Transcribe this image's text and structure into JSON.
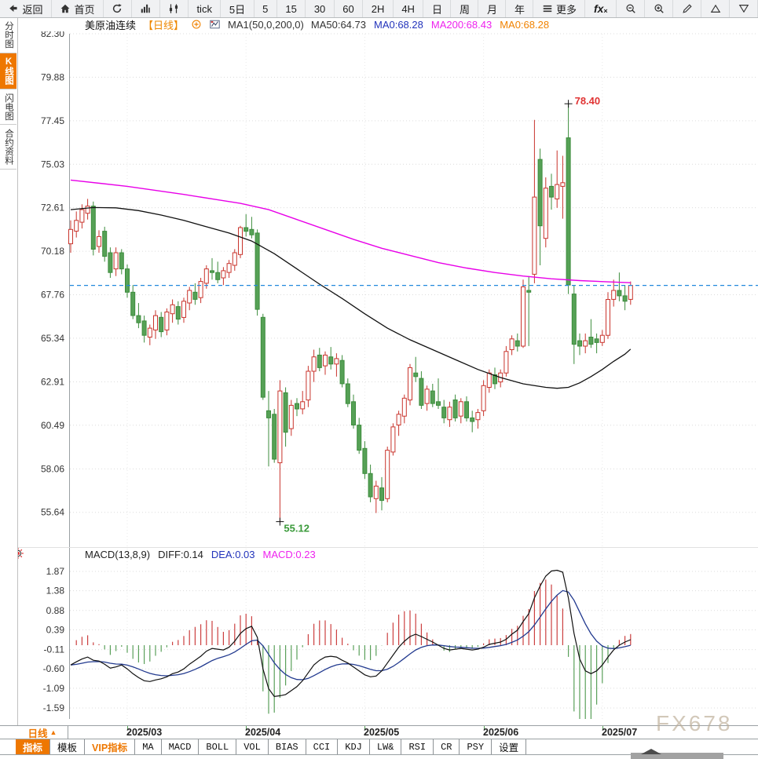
{
  "toolbar": {
    "buttons": [
      {
        "id": "back",
        "label": "返回",
        "icon": "back-arrow"
      },
      {
        "id": "home",
        "label": "首页",
        "icon": "home"
      },
      {
        "id": "refresh",
        "icon": "refresh"
      },
      {
        "id": "chart-type-bar",
        "icon": "bar-chart"
      },
      {
        "id": "chart-settings",
        "icon": "kline-sliders"
      },
      {
        "id": "period-tick",
        "label": "tick"
      },
      {
        "id": "period-5d",
        "label": "5日"
      },
      {
        "id": "period-5m",
        "label": "5"
      },
      {
        "id": "period-15m",
        "label": "15"
      },
      {
        "id": "period-30m",
        "label": "30"
      },
      {
        "id": "period-60m",
        "label": "60"
      },
      {
        "id": "period-2h",
        "label": "2H"
      },
      {
        "id": "period-4h",
        "label": "4H"
      },
      {
        "id": "period-day",
        "label": "日"
      },
      {
        "id": "period-week",
        "label": "周"
      },
      {
        "id": "period-month",
        "label": "月"
      },
      {
        "id": "period-year",
        "label": "年"
      },
      {
        "id": "more",
        "label": "更多",
        "icon": "menu"
      },
      {
        "id": "fx",
        "icon": "fx"
      },
      {
        "id": "zoom-out",
        "icon": "zoom-out"
      },
      {
        "id": "zoom-in",
        "icon": "zoom-in"
      },
      {
        "id": "draw",
        "icon": "pencil"
      },
      {
        "id": "overlay-up",
        "icon": "triangle-up"
      },
      {
        "id": "overlay-down",
        "icon": "triangle-down"
      }
    ]
  },
  "sidebar": {
    "tabs": [
      {
        "id": "time-chart",
        "label": "分时图",
        "active": false
      },
      {
        "id": "kline-chart",
        "label": "K线图",
        "active": true
      },
      {
        "id": "lightning-chart",
        "label": "闪电图",
        "active": false
      },
      {
        "id": "contract-info",
        "label": "合约资料",
        "active": false
      }
    ]
  },
  "chart_header": {
    "symbol": "美原油连续",
    "period_tag": "【日线】",
    "ma_formula": "MA1(50,0,200,0)",
    "ma_items": [
      {
        "label": "MA50:64.73",
        "color": "#333333"
      },
      {
        "label": "MA0:68.28",
        "color": "#2233bb"
      },
      {
        "label": "MA200:68.43",
        "color": "#ee22ee"
      },
      {
        "label": "MA0:68.28",
        "color": "#f08200"
      }
    ]
  },
  "macd_header": {
    "formula": "MACD(13,8,9)",
    "items": [
      {
        "label": "DIFF:0.14",
        "color": "#222222"
      },
      {
        "label": "DEA:0.03",
        "color": "#2233bb"
      },
      {
        "label": "MACD:0.23",
        "color": "#ee22ee"
      }
    ]
  },
  "chart_data": {
    "type": "candlestick+macd",
    "symbol": "美原油连续 (US Crude Oil Continuous)",
    "period": "日线 (Daily)",
    "price_axis_labels": [
      "82.30",
      "79.88",
      "77.45",
      "75.03",
      "72.61",
      "70.18",
      "67.76",
      "65.34",
      "62.91",
      "60.49",
      "58.06",
      "55.64"
    ],
    "last_close_line": 68.28,
    "annotations": {
      "high": {
        "index": 88,
        "price": 78.4,
        "label": "78.40"
      },
      "low": {
        "index": 37,
        "price": 55.12,
        "label": "55.12"
      }
    },
    "x_axis": {
      "labels": [
        "2025/03",
        "2025/04",
        "2025/05",
        "2025/06",
        "2025/07"
      ],
      "tick_indices": [
        10,
        31,
        52,
        73,
        94
      ]
    },
    "candles": [
      [
        70.6,
        71.9,
        70.1,
        71.4
      ],
      [
        71.3,
        72.4,
        70.95,
        71.9
      ],
      [
        71.8,
        72.8,
        71.45,
        72.5
      ],
      [
        72.3,
        73.1,
        71.95,
        72.7
      ],
      [
        72.7,
        72.95,
        69.95,
        70.3
      ],
      [
        70.45,
        71.35,
        70.1,
        71.0
      ],
      [
        71.3,
        71.55,
        69.6,
        69.9
      ],
      [
        70.1,
        70.4,
        68.7,
        69.0
      ],
      [
        69.2,
        70.4,
        68.8,
        70.1
      ],
      [
        70.1,
        70.3,
        68.9,
        69.2
      ],
      [
        69.2,
        69.45,
        67.6,
        67.9
      ],
      [
        67.9,
        68.3,
        66.4,
        66.6
      ],
      [
        66.6,
        67.3,
        65.9,
        66.2
      ],
      [
        66.3,
        66.6,
        65.1,
        65.5
      ],
      [
        65.4,
        66.1,
        64.95,
        65.9
      ],
      [
        65.8,
        66.9,
        65.3,
        66.6
      ],
      [
        66.5,
        66.8,
        65.4,
        65.7
      ],
      [
        65.8,
        67.0,
        65.5,
        66.8
      ],
      [
        66.7,
        67.5,
        66.2,
        67.2
      ],
      [
        67.1,
        67.4,
        66.1,
        66.4
      ],
      [
        66.5,
        67.6,
        66.2,
        67.4
      ],
      [
        67.3,
        68.2,
        66.9,
        68.0
      ],
      [
        67.9,
        68.4,
        67.2,
        67.5
      ],
      [
        67.6,
        68.7,
        67.3,
        68.5
      ],
      [
        68.4,
        69.4,
        68.1,
        69.2
      ],
      [
        69.1,
        69.8,
        68.6,
        69.0
      ],
      [
        69.0,
        69.6,
        68.4,
        68.6
      ],
      [
        68.7,
        69.3,
        68.3,
        69.1
      ],
      [
        69.0,
        69.7,
        68.7,
        69.5
      ],
      [
        69.4,
        70.3,
        69.1,
        70.1
      ],
      [
        70.0,
        71.6,
        69.8,
        71.5
      ],
      [
        71.5,
        72.25,
        71.0,
        71.3
      ],
      [
        71.4,
        72.1,
        70.9,
        71.1
      ],
      [
        71.2,
        71.4,
        66.6,
        66.95
      ],
      [
        66.5,
        66.7,
        61.9,
        62.05
      ],
      [
        61.3,
        62.4,
        58.2,
        60.9
      ],
      [
        61.1,
        61.4,
        58.4,
        58.6
      ],
      [
        58.4,
        63.0,
        55.12,
        62.4
      ],
      [
        62.3,
        62.6,
        59.3,
        60.1
      ],
      [
        60.3,
        61.9,
        59.9,
        61.6
      ],
      [
        61.7,
        62.0,
        61.0,
        61.4
      ],
      [
        61.4,
        62.4,
        61.1,
        61.8
      ],
      [
        61.9,
        63.8,
        61.5,
        63.5
      ],
      [
        63.5,
        64.7,
        62.9,
        64.3
      ],
      [
        64.4,
        64.8,
        63.5,
        63.7
      ],
      [
        63.8,
        64.6,
        63.3,
        64.4
      ],
      [
        64.3,
        64.85,
        63.6,
        63.9
      ],
      [
        63.9,
        64.5,
        63.2,
        64.2
      ],
      [
        64.1,
        64.4,
        62.6,
        62.8
      ],
      [
        62.8,
        63.1,
        61.5,
        61.7
      ],
      [
        61.8,
        62.2,
        60.3,
        60.5
      ],
      [
        60.5,
        60.9,
        58.9,
        59.1
      ],
      [
        59.2,
        59.6,
        57.5,
        57.8
      ],
      [
        57.8,
        58.3,
        56.2,
        56.5
      ],
      [
        56.4,
        57.4,
        55.6,
        57.1
      ],
      [
        57.0,
        57.6,
        55.75,
        56.3
      ],
      [
        56.4,
        59.3,
        56.2,
        59.1
      ],
      [
        59.0,
        60.6,
        58.8,
        60.4
      ],
      [
        60.5,
        61.3,
        59.9,
        61.1
      ],
      [
        61.0,
        62.2,
        60.6,
        62.0
      ],
      [
        61.9,
        63.9,
        61.6,
        63.7
      ],
      [
        63.4,
        64.3,
        62.9,
        63.2
      ],
      [
        63.1,
        63.5,
        61.4,
        61.6
      ],
      [
        61.7,
        62.7,
        61.3,
        62.5
      ],
      [
        62.4,
        62.8,
        61.5,
        61.7
      ],
      [
        61.8,
        63.1,
        61.4,
        61.6
      ],
      [
        61.5,
        61.9,
        60.6,
        60.9
      ],
      [
        60.8,
        61.8,
        60.4,
        61.5
      ],
      [
        61.9,
        62.2,
        60.7,
        60.9
      ],
      [
        61.0,
        62.0,
        60.6,
        61.8
      ],
      [
        61.8,
        62.1,
        60.7,
        60.9
      ],
      [
        60.9,
        61.3,
        60.1,
        60.7
      ],
      [
        60.8,
        61.4,
        60.3,
        61.2
      ],
      [
        61.3,
        63.0,
        61.0,
        62.7
      ],
      [
        62.6,
        63.6,
        62.3,
        63.4
      ],
      [
        63.3,
        63.7,
        62.5,
        62.8
      ],
      [
        62.9,
        63.6,
        62.6,
        63.4
      ],
      [
        63.4,
        64.9,
        63.2,
        64.6
      ],
      [
        64.7,
        65.5,
        64.4,
        65.3
      ],
      [
        65.2,
        65.6,
        64.6,
        64.9
      ],
      [
        64.9,
        68.6,
        64.8,
        68.2
      ],
      [
        68.0,
        68.8,
        64.9,
        67.9
      ],
      [
        68.9,
        77.5,
        68.4,
        73.2
      ],
      [
        75.3,
        75.9,
        69.4,
        71.6
      ],
      [
        70.9,
        74.3,
        70.4,
        73.7
      ],
      [
        73.8,
        74.5,
        72.5,
        73.2
      ],
      [
        73.1,
        75.8,
        72.6,
        73.9
      ],
      [
        73.8,
        75.5,
        72.0,
        74.0
      ],
      [
        76.5,
        78.4,
        67.8,
        68.3
      ],
      [
        67.8,
        68.3,
        63.9,
        65.0
      ],
      [
        65.2,
        65.6,
        64.4,
        64.9
      ],
      [
        64.9,
        65.6,
        64.5,
        65.2
      ],
      [
        65.4,
        66.4,
        64.8,
        65.0
      ],
      [
        65.3,
        65.6,
        64.5,
        65.1
      ],
      [
        65.1,
        65.8,
        64.9,
        65.5
      ],
      [
        65.5,
        67.9,
        65.3,
        67.5
      ],
      [
        67.5,
        68.6,
        67.1,
        68.0
      ],
      [
        68.0,
        69.0,
        67.4,
        67.7
      ],
      [
        67.7,
        68.3,
        66.9,
        67.4
      ],
      [
        67.5,
        68.5,
        67.2,
        68.28
      ]
    ],
    "ma50_points": [
      [
        0,
        72.5
      ],
      [
        4,
        72.62
      ],
      [
        8,
        72.6
      ],
      [
        12,
        72.45
      ],
      [
        16,
        72.2
      ],
      [
        20,
        71.9
      ],
      [
        24,
        71.55
      ],
      [
        28,
        71.2
      ],
      [
        32,
        70.75
      ],
      [
        36,
        70.05
      ],
      [
        40,
        69.2
      ],
      [
        44,
        68.35
      ],
      [
        48,
        67.55
      ],
      [
        52,
        66.7
      ],
      [
        56,
        65.9
      ],
      [
        60,
        65.25
      ],
      [
        64,
        64.7
      ],
      [
        68,
        64.15
      ],
      [
        72,
        63.6
      ],
      [
        76,
        63.15
      ],
      [
        80,
        62.8
      ],
      [
        84,
        62.6
      ],
      [
        86,
        62.55
      ],
      [
        88,
        62.6
      ],
      [
        90,
        62.85
      ],
      [
        92,
        63.2
      ],
      [
        94,
        63.6
      ],
      [
        96,
        64.05
      ],
      [
        98,
        64.45
      ],
      [
        99,
        64.73
      ]
    ],
    "ma200_points": [
      [
        0,
        74.15
      ],
      [
        10,
        73.8
      ],
      [
        20,
        73.35
      ],
      [
        30,
        72.85
      ],
      [
        35,
        72.5
      ],
      [
        40,
        71.95
      ],
      [
        45,
        71.4
      ],
      [
        50,
        70.85
      ],
      [
        55,
        70.35
      ],
      [
        60,
        69.95
      ],
      [
        65,
        69.55
      ],
      [
        70,
        69.25
      ],
      [
        75,
        69.0
      ],
      [
        80,
        68.8
      ],
      [
        85,
        68.65
      ],
      [
        90,
        68.55
      ],
      [
        95,
        68.48
      ],
      [
        99,
        68.43
      ]
    ],
    "macd": {
      "axis_labels": [
        "1.87",
        "1.38",
        "0.88",
        "0.39",
        "-0.11",
        "-0.60",
        "-1.09",
        "-1.59"
      ],
      "diff": [
        -0.5,
        -0.42,
        -0.35,
        -0.3,
        -0.38,
        -0.4,
        -0.48,
        -0.58,
        -0.55,
        -0.5,
        -0.6,
        -0.72,
        -0.82,
        -0.9,
        -0.92,
        -0.88,
        -0.85,
        -0.8,
        -0.72,
        -0.68,
        -0.6,
        -0.48,
        -0.38,
        -0.28,
        -0.15,
        -0.08,
        -0.1,
        -0.12,
        -0.05,
        0.1,
        0.3,
        0.42,
        0.48,
        0.2,
        -0.6,
        -1.1,
        -1.3,
        -1.28,
        -1.25,
        -1.15,
        -1.05,
        -0.9,
        -0.7,
        -0.5,
        -0.38,
        -0.3,
        -0.28,
        -0.3,
        -0.38,
        -0.45,
        -0.55,
        -0.65,
        -0.75,
        -0.8,
        -0.78,
        -0.65,
        -0.45,
        -0.25,
        -0.05,
        0.1,
        0.22,
        0.28,
        0.22,
        0.15,
        0.08,
        0.0,
        -0.08,
        -0.12,
        -0.1,
        -0.08,
        -0.1,
        -0.12,
        -0.1,
        -0.05,
        0.02,
        0.05,
        0.08,
        0.15,
        0.28,
        0.38,
        0.6,
        0.8,
        1.2,
        1.5,
        1.75,
        1.88,
        1.9,
        1.85,
        1.2,
        0.3,
        -0.35,
        -0.65,
        -0.72,
        -0.65,
        -0.5,
        -0.3,
        -0.12,
        0.0,
        0.08,
        0.14
      ]
    },
    "colors": {
      "up": "#c9342c",
      "down": "#56a156",
      "down_stroke": "#3c8c3c",
      "ma50": "#111111",
      "ma200": "#e800e8",
      "diff": "#111111",
      "dea": "#223a8f",
      "hist_up": "#cc4040",
      "hist_down": "#5aa05a",
      "last_close": "#2288dd",
      "annotation_high": "#e03333",
      "annotation_low": "#3a9a3a"
    }
  },
  "bottom": {
    "period_label": "日线",
    "period_arrow": "▲",
    "tabs": [
      {
        "label": "指标",
        "active": true
      },
      {
        "label": "模板"
      },
      {
        "label": "VIP指标",
        "vip": true
      },
      {
        "label": "MA"
      },
      {
        "label": "MACD"
      },
      {
        "label": "BOLL"
      },
      {
        "label": "VOL"
      },
      {
        "label": "BIAS"
      },
      {
        "label": "CCI"
      },
      {
        "label": "KDJ"
      },
      {
        "label": "LW&"
      },
      {
        "label": "RSI"
      },
      {
        "label": "CR"
      },
      {
        "label": "PSY"
      },
      {
        "label": "设置"
      }
    ],
    "watermark": "FX678"
  }
}
